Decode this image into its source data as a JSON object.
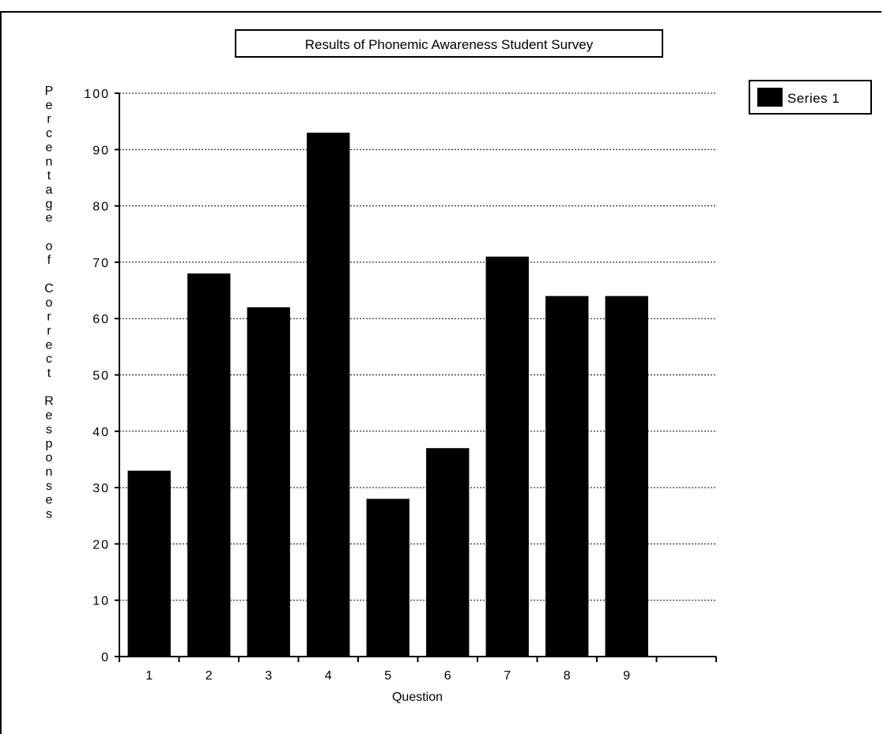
{
  "chart_data": {
    "type": "bar",
    "title": "Results of Phonemic Awareness Student Survey",
    "xlabel": "Question",
    "ylabel": "Percentage of Correct Responses",
    "categories": [
      "1",
      "2",
      "3",
      "4",
      "5",
      "6",
      "7",
      "8",
      "9"
    ],
    "series": [
      {
        "name": "Series 1",
        "values": [
          33,
          68,
          62,
          93,
          28,
          37,
          71,
          64,
          64
        ],
        "color": "#000000"
      }
    ],
    "ylim": [
      0,
      100
    ],
    "yticks": [
      "0",
      "10",
      "20",
      "30",
      "40",
      "50",
      "60",
      "70",
      "80",
      "90",
      "100"
    ],
    "grid": true,
    "legend": "top-right"
  }
}
